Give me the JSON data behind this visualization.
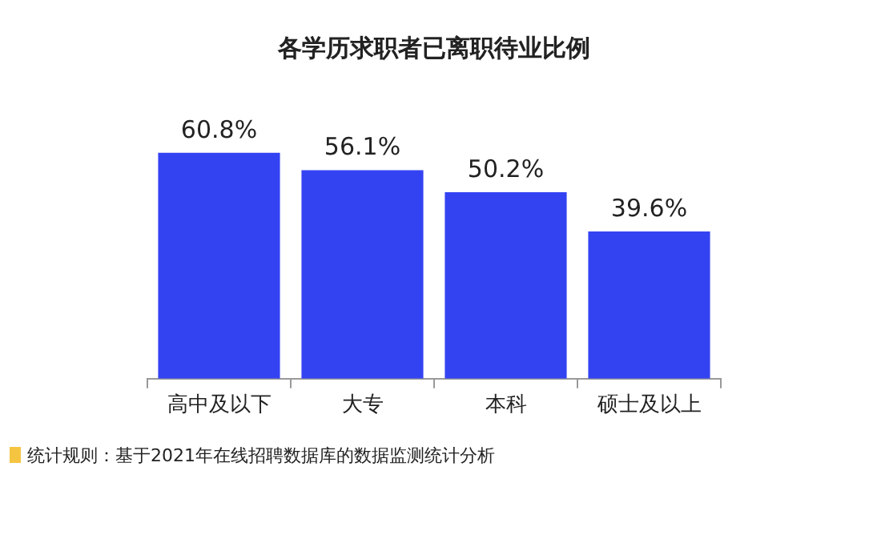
{
  "chart_data": {
    "type": "bar",
    "title": "各学历求职者已离职待业比例",
    "categories": [
      "高中及以下",
      "大专",
      "本科",
      "硕士及以上"
    ],
    "values": [
      60.8,
      56.1,
      50.2,
      39.6
    ],
    "value_labels": [
      "60.8%",
      "56.1%",
      "50.2%",
      "39.6%"
    ],
    "color": "#3443f2",
    "tick_labels": "x",
    "grid": false,
    "legend": false,
    "annotations": [
      "统计规则：基于2021年在线招聘数据库的数据监测统计分析"
    ]
  }
}
